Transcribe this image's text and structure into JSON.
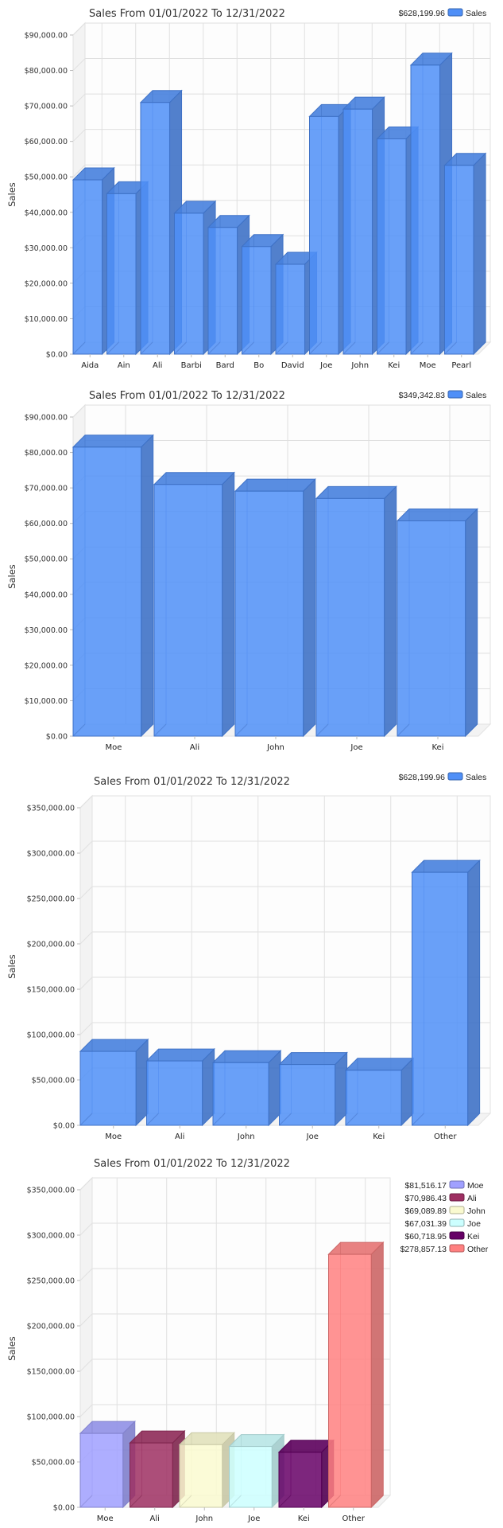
{
  "chart_data": [
    {
      "type": "bar",
      "title": "Sales From 01/01/2022 To 12/31/2022",
      "ylabel": "Sales",
      "xlabel": "",
      "ylim": [
        0,
        90000
      ],
      "grid": true,
      "legend_position": "top-right",
      "legend": [
        {
          "value_label": "$628,199.96",
          "name": "Sales",
          "color": "#4f8ff7"
        }
      ],
      "categories": [
        "Aida",
        "Ain",
        "Ali",
        "Barbi",
        "Bard",
        "Bo",
        "David",
        "Joe",
        "John",
        "Kei",
        "Moe",
        "Pearl"
      ],
      "values": [
        49150,
        45250,
        70986.43,
        39750,
        35750,
        30350,
        25350,
        67031.39,
        69089.89,
        60718.95,
        81516.17,
        53257.13
      ],
      "colors": [
        "#4f8ff7"
      ],
      "yticks": [
        0,
        10000,
        20000,
        30000,
        40000,
        50000,
        60000,
        70000,
        80000,
        90000
      ],
      "ytick_labels": [
        "$0.00",
        "$10,000.00",
        "$20,000.00",
        "$30,000.00",
        "$40,000.00",
        "$50,000.00",
        "$60,000.00",
        "$70,000.00",
        "$80,000.00",
        "$90,000.00"
      ]
    },
    {
      "type": "bar",
      "title": "Sales From 01/01/2022 To 12/31/2022",
      "ylabel": "Sales",
      "xlabel": "",
      "ylim": [
        0,
        90000
      ],
      "grid": true,
      "legend_position": "top-right",
      "legend": [
        {
          "value_label": "$349,342.83",
          "name": "Sales",
          "color": "#4f8ff7"
        }
      ],
      "categories": [
        "Moe",
        "Ali",
        "John",
        "Joe",
        "Kei"
      ],
      "values": [
        81516.17,
        70986.43,
        69089.89,
        67031.39,
        60718.95
      ],
      "colors": [
        "#4f8ff7"
      ],
      "yticks": [
        0,
        10000,
        20000,
        30000,
        40000,
        50000,
        60000,
        70000,
        80000,
        90000
      ],
      "ytick_labels": [
        "$0.00",
        "$10,000.00",
        "$20,000.00",
        "$30,000.00",
        "$40,000.00",
        "$50,000.00",
        "$60,000.00",
        "$70,000.00",
        "$80,000.00",
        "$90,000.00"
      ]
    },
    {
      "type": "bar",
      "title": "Sales From 01/01/2022 To 12/31/2022",
      "ylabel": "Sales",
      "xlabel": "",
      "ylim": [
        0,
        350000
      ],
      "grid": true,
      "legend_position": "top-right",
      "legend": [
        {
          "value_label": "$628,199.96",
          "name": "Sales",
          "color": "#4f8ff7"
        }
      ],
      "categories": [
        "Moe",
        "Ali",
        "John",
        "Joe",
        "Kei",
        "Other"
      ],
      "values": [
        81516.17,
        70986.43,
        69089.89,
        67031.39,
        60718.95,
        278857.13
      ],
      "colors": [
        "#4f8ff7"
      ],
      "yticks": [
        0,
        50000,
        100000,
        150000,
        200000,
        250000,
        300000,
        350000
      ],
      "ytick_labels": [
        "$0.00",
        "$50,000.00",
        "$100,000.00",
        "$150,000.00",
        "$200,000.00",
        "$250,000.00",
        "$300,000.00",
        "$350,000.00"
      ]
    },
    {
      "type": "bar",
      "title": "Sales From 01/01/2022 To 12/31/2022",
      "ylabel": "Sales",
      "xlabel": "",
      "ylim": [
        0,
        350000
      ],
      "grid": true,
      "legend_position": "right",
      "legend": [
        {
          "value_label": "$81,516.17",
          "name": "Moe",
          "color": "#a0a0ff"
        },
        {
          "value_label": "$70,986.43",
          "name": "Ali",
          "color": "#9e2f62"
        },
        {
          "value_label": "$69,089.89",
          "name": "John",
          "color": "#fafad0"
        },
        {
          "value_label": "$67,031.39",
          "name": "Joe",
          "color": "#ccffff"
        },
        {
          "value_label": "$60,718.95",
          "name": "Kei",
          "color": "#660066"
        },
        {
          "value_label": "$278,857.13",
          "name": "Other",
          "color": "#ff8080"
        }
      ],
      "categories": [
        "Moe",
        "Ali",
        "John",
        "Joe",
        "Kei",
        "Other"
      ],
      "values": [
        81516.17,
        70986.43,
        69089.89,
        67031.39,
        60718.95,
        278857.13
      ],
      "colors": [
        "#a0a0ff",
        "#9e2f62",
        "#fafad0",
        "#ccffff",
        "#660066",
        "#ff8080"
      ],
      "yticks": [
        0,
        50000,
        100000,
        150000,
        200000,
        250000,
        300000,
        350000
      ],
      "ytick_labels": [
        "$0.00",
        "$50,000.00",
        "$100,000.00",
        "$150,000.00",
        "$200,000.00",
        "$250,000.00",
        "$300,000.00",
        "$350,000.00"
      ]
    }
  ]
}
